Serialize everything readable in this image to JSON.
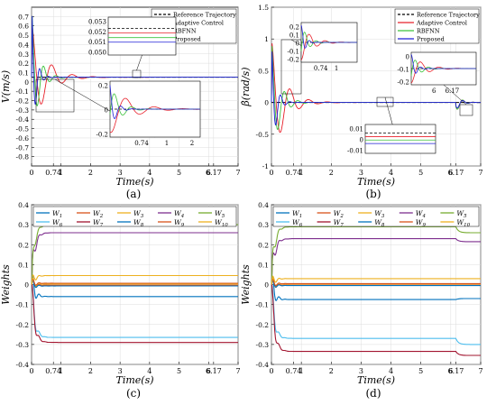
{
  "figure": {
    "panel_captions": [
      "(a)",
      "(b)",
      "(c)",
      "(d)"
    ]
  },
  "chart_data": [
    {
      "type": "line",
      "panel": "(a)",
      "xlabel": "Time(s)",
      "ylabel": "V(m/s)",
      "xlim": [
        0,
        7
      ],
      "ylim": [
        -0.9,
        0.8
      ],
      "x_ticks": [
        0,
        0.74,
        1,
        2,
        3,
        4,
        5,
        6,
        6.17,
        7
      ],
      "x_tick_labels": [
        "0",
        "0.74",
        "1",
        "2",
        "3",
        "4",
        "5",
        "6",
        "6.17",
        "7"
      ],
      "y_ticks": [
        -0.8,
        -0.7,
        -0.6,
        -0.5,
        -0.4,
        -0.3,
        -0.2,
        -0.1,
        0,
        0.1,
        0.2,
        0.3,
        0.4,
        0.5,
        0.6,
        0.7
      ],
      "y_tick_labels": [
        "-0.8",
        "-0.7",
        "-0.6",
        "-0.5",
        "-0.4",
        "-0.3",
        "-0.2",
        "-0.1",
        "0",
        "0.1",
        "0.2",
        "0.3",
        "0.4",
        "0.5",
        "0.6",
        "0.7"
      ],
      "grid": true,
      "legend_position": "top-right",
      "reference": 0.05,
      "series": [
        {
          "name": "Reference Trajectory",
          "color": "#000000",
          "dash": true,
          "amp": 0,
          "freq": 0,
          "decay": 1
        },
        {
          "name": "Adaptive Control",
          "color": "#e8202a",
          "dash": false,
          "amp": 0.6,
          "freq": 9,
          "decay": 2.2
        },
        {
          "name": "RBFNN",
          "color": "#3cc23c",
          "dash": false,
          "amp": 0.75,
          "freq": 15,
          "decay": 4.5
        },
        {
          "name": "Proposed",
          "color": "#1f1fd6",
          "dash": false,
          "amp": 0.85,
          "freq": 22,
          "decay": 8
        }
      ],
      "insets": [
        {
          "y_tick_labels": [
            "0.053",
            "0.052",
            "0.051",
            "0.050"
          ]
        },
        {
          "y_tick_labels": [
            "0.2",
            "0",
            "-0.2"
          ],
          "x_tick_labels": [
            "0.74",
            "1",
            "2"
          ]
        }
      ]
    },
    {
      "type": "line",
      "panel": "(b)",
      "xlabel": "Time(s)",
      "ylabel": "β̇(rad/s)",
      "xlim": [
        0,
        7
      ],
      "ylim": [
        -1,
        1.5
      ],
      "x_ticks": [
        0,
        0.74,
        1,
        2,
        3,
        4,
        5,
        6,
        6.17,
        7
      ],
      "x_tick_labels": [
        "0",
        "0.74",
        "1",
        "2",
        "3",
        "4",
        "5",
        "6",
        "6.17",
        "7"
      ],
      "y_ticks": [
        -1,
        -0.5,
        0,
        0.5,
        1,
        1.5
      ],
      "y_tick_labels": [
        "-1",
        "-0.5",
        "0",
        "0.5",
        "1",
        "1.5"
      ],
      "grid": true,
      "legend_position": "top-right",
      "reference": 0,
      "disturbance_time": 6.17,
      "series": [
        {
          "name": "Reference Trajectory",
          "color": "#000000",
          "dash": true,
          "amp": 0,
          "freq": 0,
          "decay": 1
        },
        {
          "name": "Adaptive Control",
          "color": "#e8202a",
          "dash": false,
          "amp": 1.0,
          "freq": 10,
          "decay": 2.5
        },
        {
          "name": "RBFNN",
          "color": "#3cc23c",
          "dash": false,
          "amp": 1.0,
          "freq": 14,
          "decay": 4
        },
        {
          "name": "Proposed",
          "color": "#1f1fd6",
          "dash": false,
          "amp": 1.0,
          "freq": 20,
          "decay": 7
        }
      ],
      "insets": [
        {
          "y_tick_labels": [
            "0.2",
            "0.1",
            "0",
            "-0.1",
            "-0.2"
          ],
          "x_tick_labels": [
            "0.74",
            "1"
          ]
        },
        {
          "y_tick_labels": [
            "0",
            "-0.1",
            "-0.2"
          ],
          "x_tick_labels": [
            "6",
            "6.17"
          ]
        },
        {
          "y_tick_labels": [
            "0.01",
            "0",
            "-0.01"
          ]
        }
      ]
    },
    {
      "type": "line",
      "panel": "(c)",
      "xlabel": "Time(s)",
      "ylabel": "Weights",
      "xlim": [
        0,
        7
      ],
      "ylim": [
        -0.4,
        0.4
      ],
      "x_ticks": [
        0,
        0.74,
        1,
        2,
        3,
        4,
        5,
        6,
        6.17,
        7
      ],
      "x_tick_labels": [
        "0",
        "0.74",
        "1",
        "2",
        "3",
        "4",
        "5",
        "6",
        "6.17",
        "7"
      ],
      "y_ticks": [
        -0.4,
        -0.3,
        -0.2,
        -0.1,
        0,
        0.1,
        0.2,
        0.3,
        0.4
      ],
      "y_tick_labels": [
        "-0.4",
        "-0.3",
        "-0.2",
        "-0.1",
        "0",
        "0.1",
        "0.2",
        "0.3",
        "0.4"
      ],
      "grid": true,
      "legend_position": "top",
      "series": [
        {
          "name": "W1",
          "sub": "1",
          "color": "#0072bd",
          "final": -0.06,
          "amp": 0.1,
          "step": 0
        },
        {
          "name": "W2",
          "sub": "2",
          "color": "#d95319",
          "final": -0.003,
          "amp": 0.05,
          "step": 0
        },
        {
          "name": "W3",
          "sub": "3",
          "color": "#edb120",
          "final": 0.003,
          "amp": 0.05,
          "step": 0
        },
        {
          "name": "W4",
          "sub": "4",
          "color": "#7e2f8e",
          "final": 0.26,
          "amp": 0.1,
          "step": 0
        },
        {
          "name": "W5",
          "sub": "5",
          "color": "#77ac30",
          "final": 0.3,
          "amp": 0.08,
          "step": 0
        },
        {
          "name": "W6",
          "sub": "6",
          "color": "#4dbeee",
          "final": -0.265,
          "amp": 0.1,
          "step": 0
        },
        {
          "name": "W7",
          "sub": "7",
          "color": "#a2142f",
          "final": -0.29,
          "amp": 0.1,
          "step": 0
        },
        {
          "name": "W8",
          "sub": "8",
          "color": "#0072bd",
          "final": -0.007,
          "amp": 0.04,
          "step": 0
        },
        {
          "name": "W9",
          "sub": "9",
          "color": "#d95319",
          "final": 0.007,
          "amp": 0.04,
          "step": 0
        },
        {
          "name": "W10",
          "sub": "10",
          "color": "#edb120",
          "final": 0.045,
          "amp": 0.05,
          "step": 0
        }
      ]
    },
    {
      "type": "line",
      "panel": "(d)",
      "xlabel": "Time(s)",
      "ylabel": "Weights",
      "xlim": [
        0,
        7
      ],
      "ylim": [
        -0.4,
        0.4
      ],
      "x_ticks": [
        0,
        0.74,
        1,
        2,
        3,
        4,
        5,
        6,
        6.17,
        7
      ],
      "x_tick_labels": [
        "0",
        "0.74",
        "1",
        "2",
        "3",
        "4",
        "5",
        "6",
        "6.17",
        "7"
      ],
      "y_ticks": [
        -0.4,
        -0.3,
        -0.2,
        -0.1,
        0,
        0.1,
        0.2,
        0.3,
        0.4
      ],
      "y_tick_labels": [
        "-0.4",
        "-0.3",
        "-0.2",
        "-0.1",
        "0",
        "0.1",
        "0.2",
        "0.3",
        "0.4"
      ],
      "grid": true,
      "legend_position": "top",
      "disturbance_time": 6.17,
      "series": [
        {
          "name": "W1",
          "sub": "1",
          "color": "#0072bd",
          "final": -0.075,
          "amp": 0.1,
          "step": 0.005
        },
        {
          "name": "W2",
          "sub": "2",
          "color": "#d95319",
          "final": -0.003,
          "amp": 0.05,
          "step": 0
        },
        {
          "name": "W3",
          "sub": "3",
          "color": "#edb120",
          "final": 0.003,
          "amp": 0.05,
          "step": 0
        },
        {
          "name": "W4",
          "sub": "4",
          "color": "#7e2f8e",
          "final": 0.23,
          "amp": 0.1,
          "step": -0.015
        },
        {
          "name": "W5",
          "sub": "5",
          "color": "#77ac30",
          "final": 0.29,
          "amp": 0.1,
          "step": -0.03
        },
        {
          "name": "W6",
          "sub": "6",
          "color": "#4dbeee",
          "final": -0.27,
          "amp": 0.1,
          "step": -0.03
        },
        {
          "name": "W7",
          "sub": "7",
          "color": "#a2142f",
          "final": -0.335,
          "amp": 0.1,
          "step": -0.02
        },
        {
          "name": "W8",
          "sub": "8",
          "color": "#0072bd",
          "final": -0.005,
          "amp": 0.04,
          "step": 0
        },
        {
          "name": "W9",
          "sub": "9",
          "color": "#d95319",
          "final": 0.005,
          "amp": 0.04,
          "step": 0
        },
        {
          "name": "W10",
          "sub": "10",
          "color": "#edb120",
          "final": 0.03,
          "amp": 0.05,
          "step": 0
        }
      ]
    }
  ]
}
